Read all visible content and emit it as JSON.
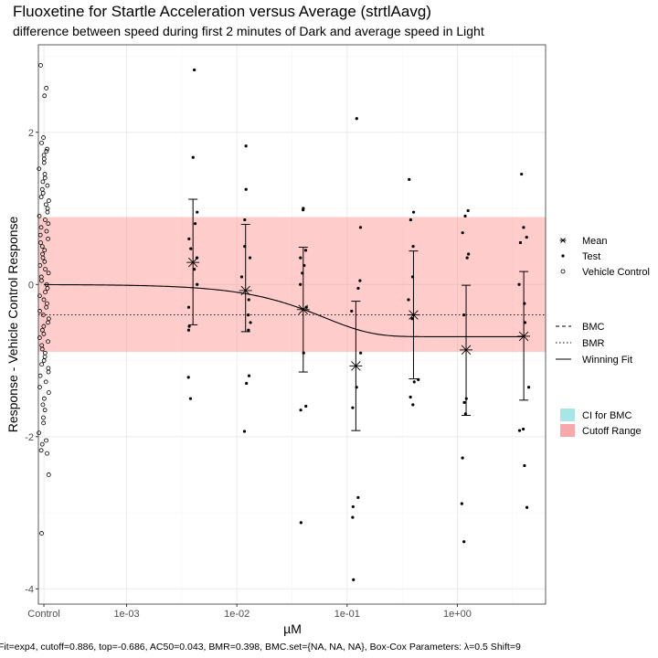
{
  "chart_data": {
    "type": "scatter",
    "title": "Fluoxetine for Startle Acceleration versus Average (strtlAavg)",
    "subtitle": "difference between speed during first 2 minutes of Dark and average speed in Light",
    "xlabel": "µM",
    "ylabel": "Response - Vehicle Control Response",
    "caption": "Fit=exp4, cutoff=0.886, top=-0.686, AC50=0.043, BMR=0.398, BMC.set={NA, NA, NA}, Box-Cox Parameters: λ=0.5 Shift=9",
    "x_scale": "log10",
    "x_ticks": [
      {
        "label": "Control",
        "value": null
      },
      {
        "label": "1e-03",
        "value": 0.001
      },
      {
        "label": "1e-02",
        "value": 0.01
      },
      {
        "label": "1e-01",
        "value": 0.1
      },
      {
        "label": "1e+00",
        "value": 1
      }
    ],
    "y_ticks": [
      2,
      0,
      -2,
      -4
    ],
    "ylim": [
      -4.2,
      3.15
    ],
    "xlim_log10": [
      -3.8,
      0.8
    ],
    "control_log10": -3.75,
    "grid": true,
    "cutoff": 0.886,
    "bmr_line": -0.398,
    "legend_points": {
      "items": [
        {
          "label": "Mean",
          "symbol": "asterisk"
        },
        {
          "label": "Test",
          "symbol": "dot"
        },
        {
          "label": "Vehicle Control",
          "symbol": "open-circle"
        }
      ]
    },
    "legend_lines": {
      "items": [
        {
          "label": "BMC",
          "style": "dashed"
        },
        {
          "label": "BMR",
          "style": "dotted"
        },
        {
          "label": "Winning Fit",
          "style": "solid"
        }
      ]
    },
    "legend_fills": {
      "items": [
        {
          "label": "CI for BMC",
          "color": "#a6e6e6"
        },
        {
          "label": "Cutoff Range",
          "color": "#f8a8a8"
        }
      ]
    },
    "fit": {
      "model": "exp4",
      "top": -0.686,
      "ac50": 0.043
    },
    "means": [
      {
        "x": 0.004,
        "mean": 0.29,
        "lower": -0.53,
        "upper": 1.12
      },
      {
        "x": 0.012,
        "mean": -0.08,
        "lower": -0.62,
        "upper": 0.79
      },
      {
        "x": 0.04,
        "mean": -0.33,
        "lower": -1.15,
        "upper": 0.49
      },
      {
        "x": 0.12,
        "mean": -1.07,
        "lower": -1.92,
        "upper": -0.22
      },
      {
        "x": 0.4,
        "mean": -0.4,
        "lower": -1.24,
        "upper": 0.44
      },
      {
        "x": 1.2,
        "mean": -0.86,
        "lower": -1.72,
        "upper": -0.01
      },
      {
        "x": 4,
        "mean": -0.68,
        "lower": -1.52,
        "upper": 0.17
      }
    ],
    "test_points": [
      {
        "x": 0.004,
        "y": 2.82
      },
      {
        "x": 0.004,
        "y": 1.67
      },
      {
        "x": 0.004,
        "y": 0.95
      },
      {
        "x": 0.004,
        "y": 0.8
      },
      {
        "x": 0.004,
        "y": 0.6
      },
      {
        "x": 0.004,
        "y": 0.47
      },
      {
        "x": 0.004,
        "y": 0.35
      },
      {
        "x": 0.004,
        "y": 0.2
      },
      {
        "x": 0.004,
        "y": 0.0
      },
      {
        "x": 0.004,
        "y": -0.3
      },
      {
        "x": 0.004,
        "y": -0.55
      },
      {
        "x": 0.004,
        "y": -0.6
      },
      {
        "x": 0.004,
        "y": -1.22
      },
      {
        "x": 0.004,
        "y": -1.5
      },
      {
        "x": 0.012,
        "y": 1.82
      },
      {
        "x": 0.012,
        "y": 1.25
      },
      {
        "x": 0.012,
        "y": 0.85
      },
      {
        "x": 0.012,
        "y": 0.5
      },
      {
        "x": 0.012,
        "y": 0.35
      },
      {
        "x": 0.012,
        "y": 0.1
      },
      {
        "x": 0.012,
        "y": -0.2
      },
      {
        "x": 0.012,
        "y": -0.4
      },
      {
        "x": 0.012,
        "y": -0.5
      },
      {
        "x": 0.012,
        "y": -0.6
      },
      {
        "x": 0.012,
        "y": -1.2
      },
      {
        "x": 0.012,
        "y": -1.3
      },
      {
        "x": 0.012,
        "y": -1.93
      },
      {
        "x": 0.04,
        "y": 1.0
      },
      {
        "x": 0.04,
        "y": 0.98
      },
      {
        "x": 0.04,
        "y": 0.45
      },
      {
        "x": 0.04,
        "y": 0.35
      },
      {
        "x": 0.04,
        "y": 0.25
      },
      {
        "x": 0.04,
        "y": 0.15
      },
      {
        "x": 0.04,
        "y": 0.0
      },
      {
        "x": 0.04,
        "y": -0.3
      },
      {
        "x": 0.04,
        "y": -0.9
      },
      {
        "x": 0.04,
        "y": -1.6
      },
      {
        "x": 0.04,
        "y": -1.65
      },
      {
        "x": 0.04,
        "y": -3.13
      },
      {
        "x": 0.12,
        "y": 2.18
      },
      {
        "x": 0.12,
        "y": 0.75
      },
      {
        "x": 0.12,
        "y": 0.05
      },
      {
        "x": 0.12,
        "y": -0.05
      },
      {
        "x": 0.12,
        "y": -0.35
      },
      {
        "x": 0.12,
        "y": -0.9
      },
      {
        "x": 0.12,
        "y": -1.35
      },
      {
        "x": 0.12,
        "y": -1.62
      },
      {
        "x": 0.12,
        "y": -2.8
      },
      {
        "x": 0.12,
        "y": -2.92
      },
      {
        "x": 0.12,
        "y": -3.06
      },
      {
        "x": 0.12,
        "y": -3.88
      },
      {
        "x": 0.4,
        "y": 1.38
      },
      {
        "x": 0.4,
        "y": 0.95
      },
      {
        "x": 0.4,
        "y": 0.85
      },
      {
        "x": 0.4,
        "y": 0.5
      },
      {
        "x": 0.4,
        "y": 0.1
      },
      {
        "x": 0.4,
        "y": -0.2
      },
      {
        "x": 0.4,
        "y": -0.45
      },
      {
        "x": 0.4,
        "y": -1.25
      },
      {
        "x": 0.4,
        "y": -1.28
      },
      {
        "x": 0.4,
        "y": -1.48
      },
      {
        "x": 0.4,
        "y": -1.58
      },
      {
        "x": 1.2,
        "y": 0.97
      },
      {
        "x": 1.2,
        "y": 0.9
      },
      {
        "x": 1.2,
        "y": 0.68
      },
      {
        "x": 1.2,
        "y": 0.4
      },
      {
        "x": 1.2,
        "y": 0.35
      },
      {
        "x": 1.2,
        "y": -0.4
      },
      {
        "x": 1.2,
        "y": -1.5
      },
      {
        "x": 1.2,
        "y": -1.55
      },
      {
        "x": 1.2,
        "y": -1.7
      },
      {
        "x": 1.2,
        "y": -2.28
      },
      {
        "x": 1.2,
        "y": -2.88
      },
      {
        "x": 1.2,
        "y": -3.38
      },
      {
        "x": 4,
        "y": 1.45
      },
      {
        "x": 4,
        "y": 0.75
      },
      {
        "x": 4,
        "y": 0.62
      },
      {
        "x": 4,
        "y": 0.55
      },
      {
        "x": 4,
        "y": 0.0
      },
      {
        "x": 4,
        "y": -0.25
      },
      {
        "x": 4,
        "y": -0.5
      },
      {
        "x": 4,
        "y": -1.35
      },
      {
        "x": 4,
        "y": -1.9
      },
      {
        "x": 4,
        "y": -1.92
      },
      {
        "x": 4,
        "y": -2.38
      },
      {
        "x": 4,
        "y": -2.93
      }
    ],
    "control_points": [
      2.88,
      2.58,
      2.48,
      1.93,
      1.86,
      1.78,
      1.75,
      1.7,
      1.65,
      1.6,
      1.52,
      1.45,
      1.4,
      1.35,
      1.3,
      1.25,
      1.2,
      1.15,
      1.1,
      1.05,
      1.0,
      0.95,
      0.9,
      0.85,
      0.8,
      0.75,
      0.7,
      0.65,
      0.6,
      0.55,
      0.5,
      0.45,
      0.4,
      0.35,
      0.3,
      0.25,
      0.2,
      0.15,
      0.1,
      0.05,
      0.0,
      -0.05,
      -0.1,
      -0.15,
      -0.2,
      -0.25,
      -0.3,
      -0.35,
      -0.4,
      -0.45,
      -0.5,
      -0.55,
      -0.6,
      -0.65,
      -0.7,
      -0.75,
      -0.8,
      -0.85,
      -0.9,
      -0.95,
      -1.0,
      -1.05,
      -1.1,
      -1.15,
      -1.2,
      -1.28,
      -1.35,
      -1.42,
      -1.5,
      -1.58,
      -1.65,
      -1.75,
      -1.82,
      -1.95,
      -2.05,
      -2.1,
      -2.18,
      -2.22,
      -2.5,
      -3.27
    ]
  }
}
